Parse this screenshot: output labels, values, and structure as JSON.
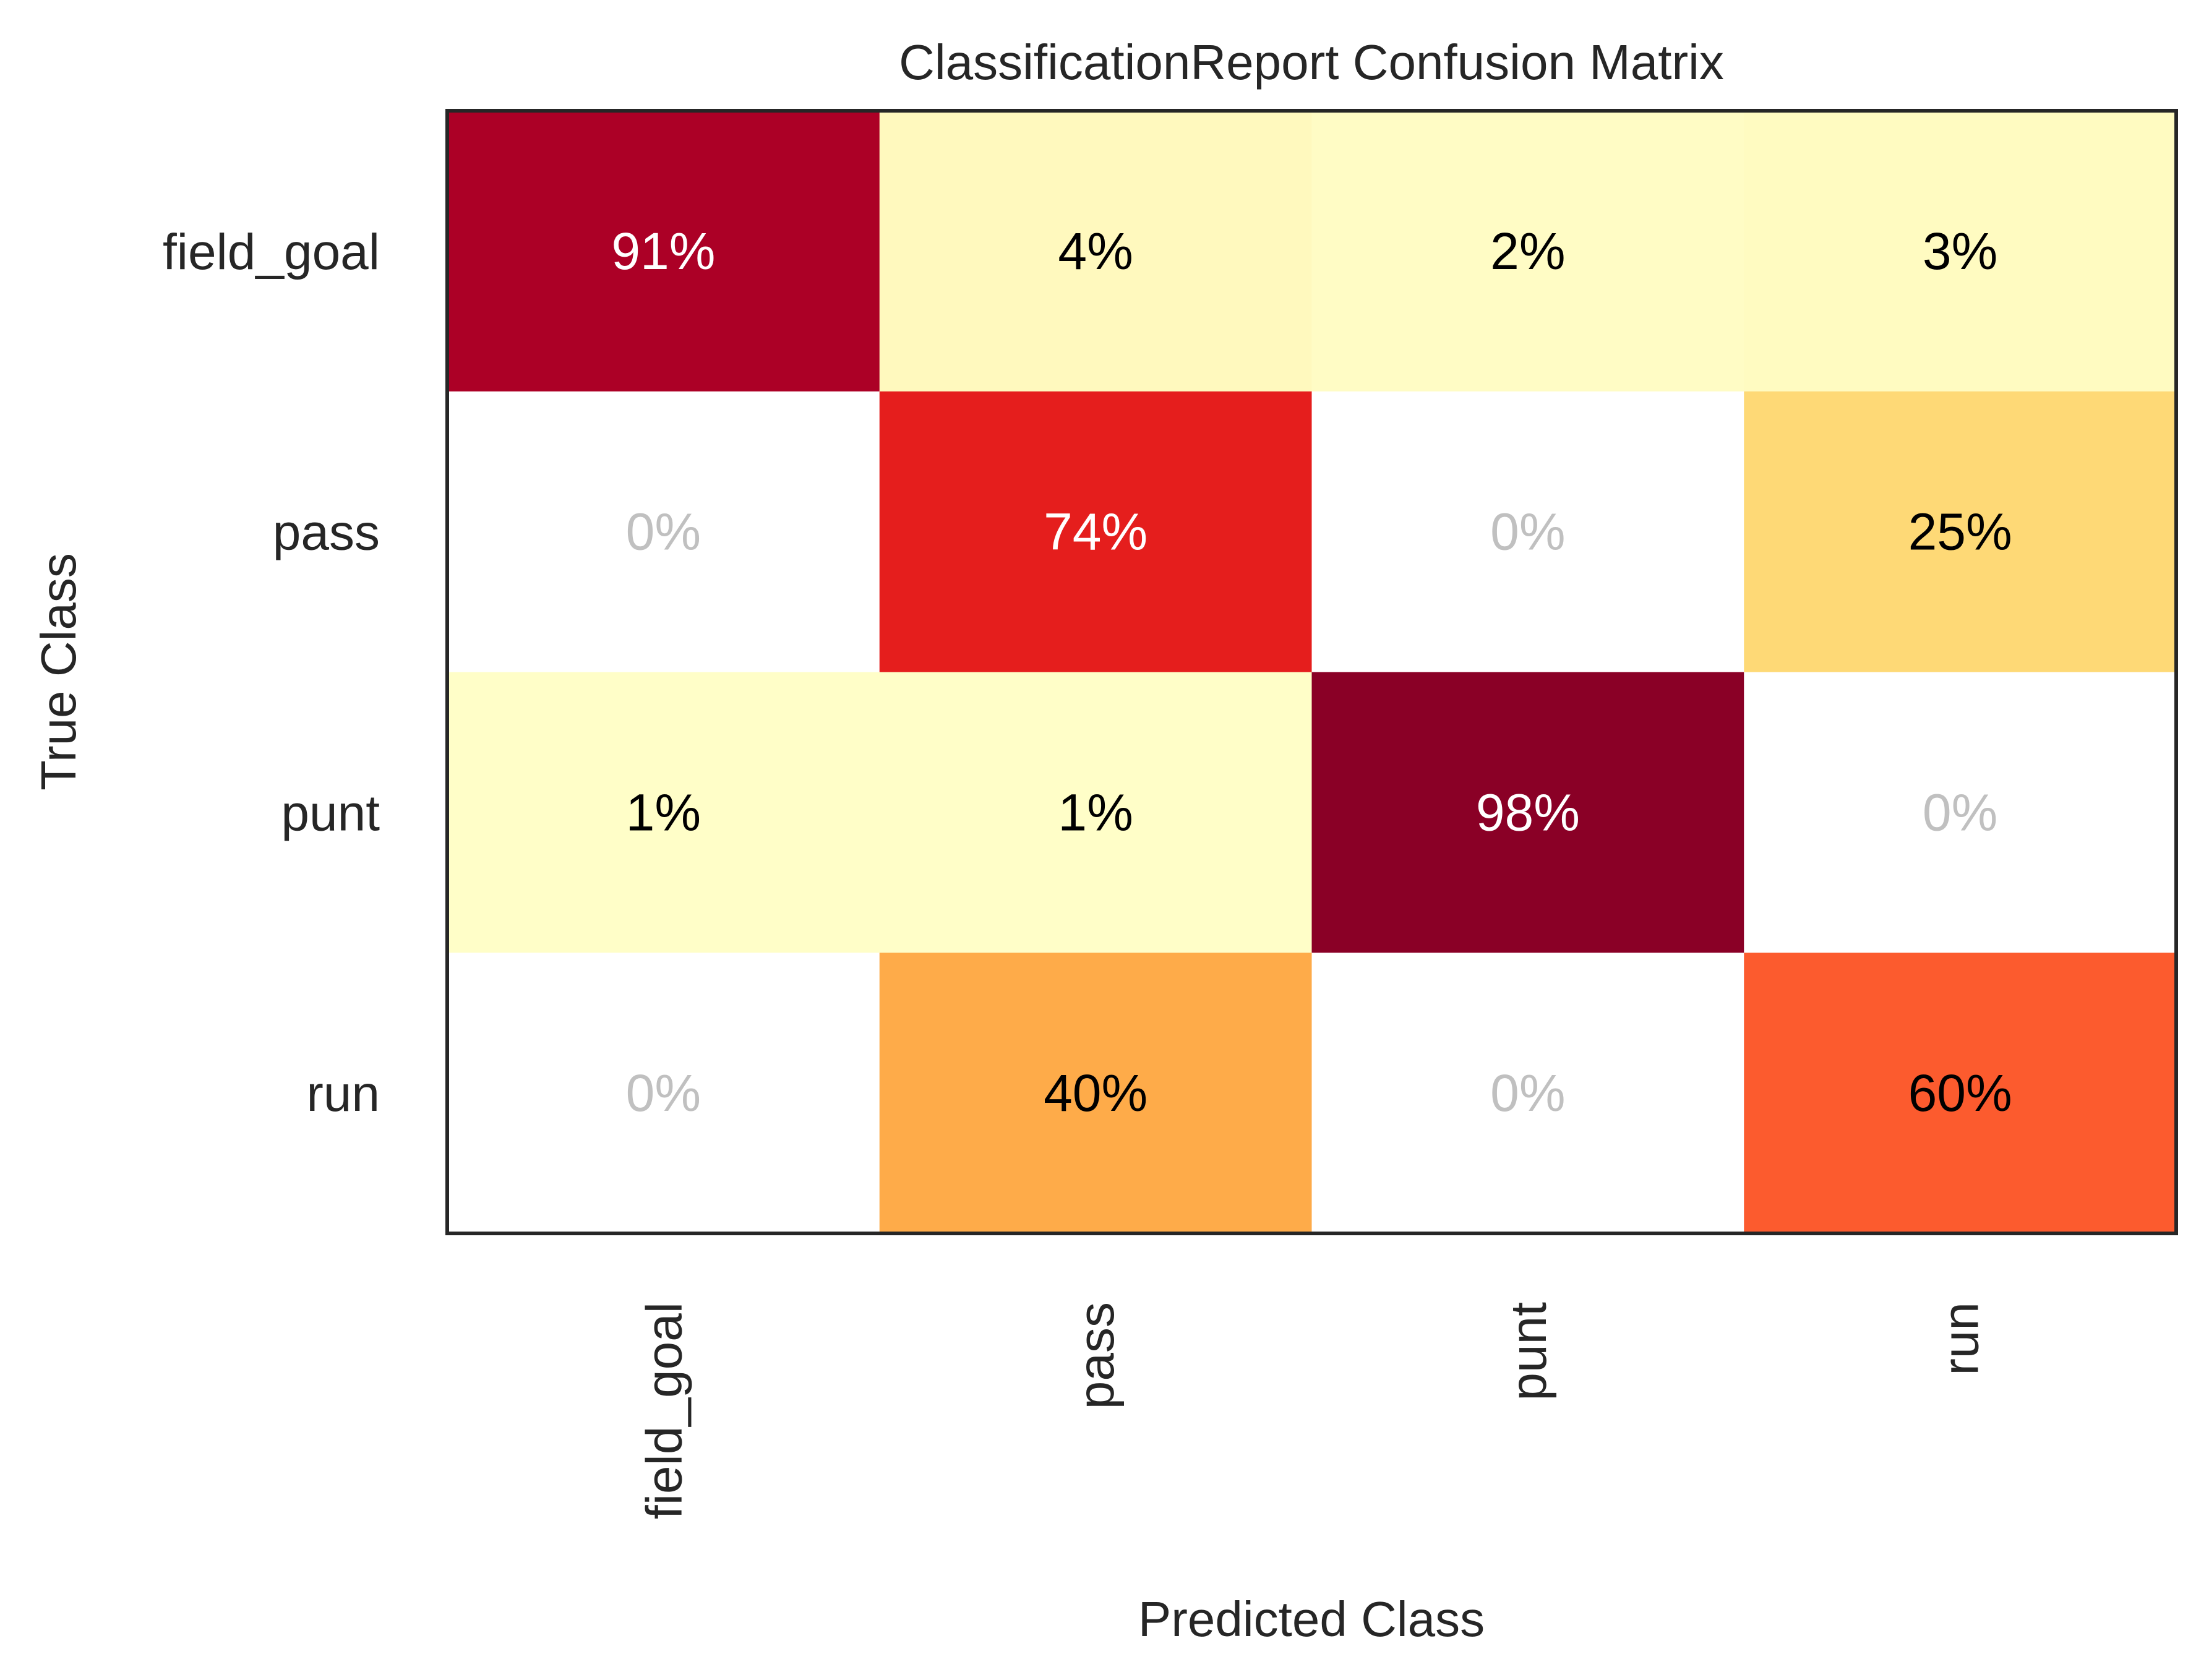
{
  "chart_data": {
    "type": "heatmap",
    "title": "ClassificationReport Confusion Matrix",
    "xlabel": "Predicted Class",
    "ylabel": "True Class",
    "x_categories": [
      "field_goal",
      "pass",
      "punt",
      "run"
    ],
    "y_categories": [
      "field_goal",
      "pass",
      "punt",
      "run"
    ],
    "values": [
      [
        91,
        4,
        2,
        3
      ],
      [
        0,
        74,
        0,
        25
      ],
      [
        1,
        1,
        98,
        0
      ],
      [
        0,
        40,
        0,
        60
      ]
    ],
    "value_labels": [
      [
        "91%",
        "4%",
        "2%",
        "3%"
      ],
      [
        "0%",
        "74%",
        "0%",
        "25%"
      ],
      [
        "1%",
        "1%",
        "98%",
        "0%"
      ],
      [
        "0%",
        "40%",
        "0%",
        "60%"
      ]
    ],
    "colormap": "YlOrRd",
    "zero_cell_color": "#ffffff",
    "zero_text_color": "#c0c0c0",
    "dark_text_color": "#000000",
    "light_text_color": "#ffffff",
    "border_color": "#262626",
    "grid": false
  }
}
